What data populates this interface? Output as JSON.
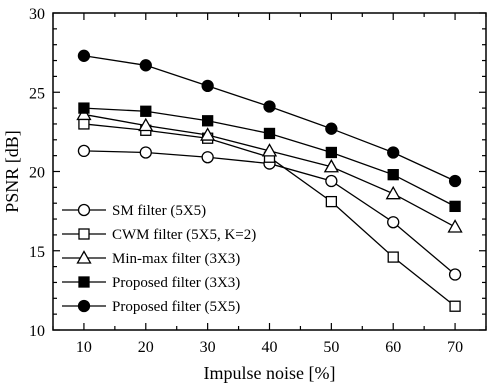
{
  "chart_data": {
    "type": "line",
    "xlabel": "Impulse noise [%]",
    "ylabel": "PSNR [dB]",
    "xlim": [
      5,
      75
    ],
    "ylim": [
      10,
      30
    ],
    "xticks": [
      10,
      20,
      30,
      40,
      50,
      60,
      70
    ],
    "yticks": [
      10,
      15,
      20,
      25,
      30
    ],
    "x": [
      10,
      20,
      30,
      40,
      50,
      60,
      70
    ],
    "legend_position": "bottom-left",
    "series": [
      {
        "name": "SM filter (5X5)",
        "marker": "circle-open",
        "values": [
          21.3,
          21.2,
          20.9,
          20.5,
          19.4,
          16.8,
          13.5
        ]
      },
      {
        "name": "CWM filter (5X5, K=2)",
        "marker": "square-open",
        "values": [
          23.0,
          22.6,
          22.1,
          20.9,
          18.1,
          14.6,
          11.5
        ]
      },
      {
        "name": "Min-max filter (3X3)",
        "marker": "triangle-open",
        "values": [
          23.6,
          22.9,
          22.3,
          21.3,
          20.3,
          18.6,
          16.5
        ]
      },
      {
        "name": "Proposed filter (3X3)",
        "marker": "square-filled",
        "values": [
          24.0,
          23.8,
          23.2,
          22.4,
          21.2,
          19.8,
          17.8
        ]
      },
      {
        "name": "Proposed filter (5X5)",
        "marker": "circle-filled",
        "values": [
          27.3,
          26.7,
          25.4,
          24.1,
          22.7,
          21.2,
          19.4
        ]
      }
    ]
  }
}
